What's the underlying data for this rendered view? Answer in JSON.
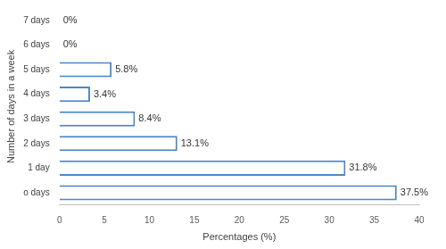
{
  "chart_data": {
    "type": "bar",
    "orientation": "horizontal",
    "x_label": "Percentages (%)",
    "y_label": "Number of days in a week",
    "categories": [
      "7 days",
      "6 days",
      "5 days",
      "4 days",
      "3 days",
      "2 days",
      "1 day",
      "o days"
    ],
    "values": [
      0,
      0,
      5.8,
      3.4,
      8.4,
      13.1,
      31.8,
      37.5
    ],
    "value_labels": [
      "0%",
      "0%",
      "5.8%",
      "3.4%",
      "8.4%",
      "13.1%",
      "31.8%",
      "37.5%"
    ],
    "data_labels": true,
    "color": "#4a86c8",
    "xlim": [
      0,
      40
    ],
    "xticks": [
      0,
      5,
      10,
      15,
      20,
      25,
      30,
      35,
      40
    ],
    "grid": false
  }
}
